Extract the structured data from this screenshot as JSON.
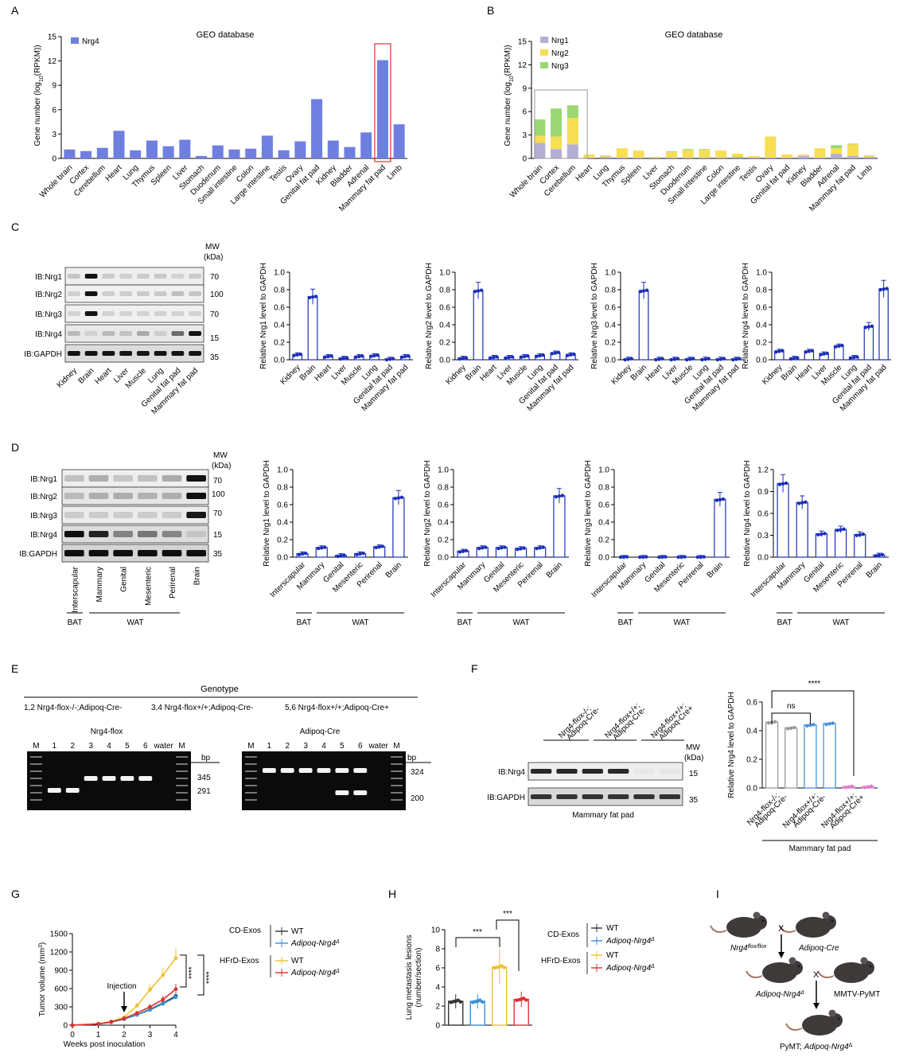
{
  "panel_labels": [
    "A",
    "B",
    "C",
    "D",
    "E",
    "F",
    "G",
    "H",
    "I"
  ],
  "tissues": [
    "Whole brain",
    "Cortex",
    "Cerebellum",
    "Heart",
    "Lung",
    "Thymus",
    "Spleen",
    "Liver",
    "Stomach",
    "Duodenum",
    "Small intestine",
    "Colon",
    "Large intestine",
    "Testis",
    "Ovary",
    "Genital fat pad",
    "Kidney",
    "Bladder",
    "Adrenal",
    "Mammary fat pad",
    "Limb"
  ],
  "chart_data": [
    {
      "id": "A",
      "type": "bar",
      "title": "GEO database",
      "ylabel": "Gene number (log10(RPKM))",
      "ylim": [
        0,
        15
      ],
      "yticks": [
        0,
        3,
        6,
        9,
        12,
        15
      ],
      "series": [
        {
          "name": "Nrg4",
          "color": "#6f7fe0",
          "values": [
            1.1,
            0.9,
            1.3,
            3.4,
            1.0,
            2.2,
            1.5,
            2.3,
            0.3,
            1.6,
            1.1,
            1.2,
            2.8,
            1.0,
            2.1,
            7.3,
            2.2,
            1.4,
            3.2,
            12.1,
            4.2
          ]
        }
      ],
      "highlight": "Mammary fat pad"
    },
    {
      "id": "B",
      "type": "bar",
      "stacked": true,
      "title": "GEO database",
      "ylabel": "Gene number (log10(RPKM))",
      "ylim": [
        0,
        15
      ],
      "yticks": [
        0,
        3,
        6,
        9,
        12,
        15
      ],
      "series": [
        {
          "name": "Nrg1",
          "color": "#b3aed4",
          "values": [
            2.0,
            1.2,
            1.8,
            0.1,
            0.2,
            0.1,
            0.1,
            0.1,
            0.1,
            0.1,
            0.1,
            0.1,
            0.2,
            0.1,
            0.1,
            0.1,
            0.3,
            0.1,
            0.6,
            0.3,
            0.2
          ]
        },
        {
          "name": "Nrg2",
          "color": "#f7de52",
          "values": [
            0.9,
            1.6,
            3.4,
            0.4,
            0.2,
            1.2,
            0.9,
            0.1,
            0.7,
            1.0,
            1.0,
            0.9,
            0.4,
            0.2,
            2.7,
            0.4,
            0.2,
            1.2,
            0.7,
            1.5,
            0.2
          ]
        },
        {
          "name": "Nrg3",
          "color": "#9bd773",
          "values": [
            2.1,
            3.6,
            1.6,
            0,
            0,
            0,
            0,
            0,
            0.1,
            0.1,
            0.1,
            0,
            0,
            0,
            0,
            0,
            0,
            0,
            0.4,
            0.1,
            0
          ]
        }
      ]
    },
    {
      "id": "C1",
      "type": "bar",
      "ylabel": "Relative Nrg1 level to GAPDH",
      "ylim": [
        0,
        1.0
      ],
      "categories": [
        "Kidney",
        "Brain",
        "Heart",
        "Liver",
        "Muscle",
        "Lung",
        "Genital fat pad",
        "Mammary fat pad"
      ],
      "values": [
        0.06,
        0.72,
        0.04,
        0.02,
        0.04,
        0.05,
        0.01,
        0.04
      ]
    },
    {
      "id": "C2",
      "type": "bar",
      "ylabel": "Relative Nrg2 level to GAPDH",
      "ylim": [
        0,
        1.0
      ],
      "categories": [
        "Kidney",
        "Brain",
        "Heart",
        "Liver",
        "Muscle",
        "Lung",
        "Genital fat pad",
        "Mammary fat pad"
      ],
      "values": [
        0.02,
        0.79,
        0.03,
        0.03,
        0.04,
        0.05,
        0.08,
        0.06
      ]
    },
    {
      "id": "C3",
      "type": "bar",
      "ylabel": "Relative Nrg3 level to GAPDH",
      "ylim": [
        0,
        1.0
      ],
      "categories": [
        "Kidney",
        "Brain",
        "Heart",
        "Liver",
        "Muscle",
        "Lung",
        "Genital fat pad",
        "Mammary fat pad"
      ],
      "values": [
        0.01,
        0.79,
        0.01,
        0.01,
        0.01,
        0.01,
        0.01,
        0.01
      ]
    },
    {
      "id": "C4",
      "type": "bar",
      "ylabel": "Relative Nrg4 level to GAPDH",
      "ylim": [
        0,
        1.0
      ],
      "categories": [
        "Kidney",
        "Brain",
        "Heart",
        "Liver",
        "Muscle",
        "Lung",
        "Genital fat pad",
        "Mammary fat pad"
      ],
      "values": [
        0.1,
        0.02,
        0.1,
        0.07,
        0.16,
        0.03,
        0.38,
        0.81
      ]
    },
    {
      "id": "D1",
      "type": "bar",
      "ylabel": "Relative Nrg1 level to GAPDH",
      "ylim": [
        0,
        1.0
      ],
      "categories": [
        "Interscapular",
        "Mammary",
        "Genital",
        "Mesenteric",
        "Perirenal",
        "Brain"
      ],
      "values": [
        0.04,
        0.11,
        0.02,
        0.04,
        0.12,
        0.68
      ]
    },
    {
      "id": "D2",
      "type": "bar",
      "ylabel": "Relative Nrg2 level to GAPDH",
      "ylim": [
        0,
        1.0
      ],
      "categories": [
        "Interscapular",
        "Mammary",
        "Genital",
        "Mesenteric",
        "Perirenal",
        "Brain"
      ],
      "values": [
        0.07,
        0.11,
        0.11,
        0.1,
        0.11,
        0.7
      ]
    },
    {
      "id": "D3",
      "type": "bar",
      "ylabel": "Relative Nrg3 level to GAPDH",
      "ylim": [
        0,
        1.0
      ],
      "categories": [
        "Interscapular",
        "Mammary",
        "Genital",
        "Mesenteric",
        "Perirenal",
        "Brain"
      ],
      "values": [
        0.0,
        0.0,
        0.0,
        0.0,
        0.0,
        0.66
      ]
    },
    {
      "id": "D4",
      "type": "bar",
      "ylabel": "Relative Nrg4 level to GAPDH",
      "ylim": [
        0,
        1.2
      ],
      "categories": [
        "Interscapular",
        "Mammary",
        "Genital",
        "Mesenteric",
        "Perirenal",
        "Brain"
      ],
      "values": [
        1.01,
        0.75,
        0.32,
        0.38,
        0.31,
        0.03
      ]
    },
    {
      "id": "F",
      "type": "bar",
      "ylabel": "Relative Nrg4 level to GAPDH",
      "ylim": [
        0,
        0.6
      ],
      "values": [
        0.46,
        0.42,
        0.44,
        0.45,
        0.01,
        0.01
      ],
      "colors": [
        "#9a9a9a",
        "#9a9a9a",
        "#4a90d9",
        "#4a90d9",
        "#e07ac8",
        "#e07ac8"
      ]
    },
    {
      "id": "G",
      "type": "line",
      "xlabel": "Weeks post inoculation",
      "ylabel": "Tumor volume (mm3)",
      "ylim": [
        0,
        1500
      ],
      "x": [
        0,
        1,
        1.5,
        2,
        2.5,
        3,
        3.5,
        4
      ],
      "series": [
        {
          "name": "CD-Exos WT",
          "color": "#333333",
          "values": [
            0,
            20,
            50,
            100,
            170,
            260,
            360,
            480
          ]
        },
        {
          "name": "CD-Exos Adipoq-Nrg4Δ",
          "color": "#3b8fd6",
          "values": [
            0,
            20,
            50,
            100,
            170,
            250,
            350,
            460
          ]
        },
        {
          "name": "HFrD-Exos WT",
          "color": "#f0c030",
          "values": [
            0,
            25,
            60,
            130,
            320,
            580,
            820,
            1100
          ]
        },
        {
          "name": "HFrD-Exos Adipoq-Nrg4Δ",
          "color": "#e03030",
          "values": [
            0,
            20,
            55,
            110,
            200,
            300,
            420,
            590
          ]
        }
      ]
    },
    {
      "id": "H",
      "type": "bar",
      "ylabel": "Lung metastasis lesions (number/section)",
      "ylim": [
        0,
        10
      ],
      "values": [
        2.5,
        2.5,
        6.1,
        2.7
      ],
      "colors": [
        "#333333",
        "#3b8fd6",
        "#f0c030",
        "#e03030"
      ]
    }
  ],
  "A": {
    "title": "GEO database",
    "legend": "Nrg4",
    "ylabel": "Gene number (log",
    "ylabel_sub": "10",
    "ylabel_end": "(RPKM))"
  },
  "B": {
    "title": "GEO database",
    "legend": [
      "Nrg1",
      "Nrg2",
      "Nrg3"
    ],
    "ylabel": "Gene number (log",
    "ylabel_sub": "10",
    "ylabel_end": "(RPKM))"
  },
  "C": {
    "ib": [
      "IB:Nrg1",
      "IB:Nrg2",
      "IB:Nrg3",
      "IB:Nrg4",
      "IB:GAPDH"
    ],
    "mw_title": "MW",
    "mw_unit": "(kDa)",
    "mw": [
      "70",
      "100",
      "70",
      "15",
      "35"
    ],
    "lanes": [
      "Kidney",
      "Brain",
      "Heart",
      "Liver",
      "Muscle",
      "Lung",
      "Genital fat pad",
      "Mammary fat pad"
    ],
    "yticks": [
      "0.0",
      "0.2",
      "0.4",
      "0.6",
      "0.8",
      "1.0"
    ]
  },
  "D": {
    "ib": [
      "IB:Nrg1",
      "IB:Nrg2",
      "IB:Nrg3",
      "IB:Nrg4",
      "IB:GAPDH"
    ],
    "mw_title": "MW",
    "mw_unit": "(kDa)",
    "mw": [
      "70",
      "100",
      "70",
      "15",
      "35"
    ],
    "lanes": [
      "Interscapular",
      "Mammary",
      "Genital",
      "Mesenteric",
      "Perirenal",
      "Brain"
    ],
    "bat": "BAT",
    "wat": "WAT",
    "yticks": [
      "0.0",
      "0.2",
      "0.4",
      "0.6",
      "0.8",
      "1.0"
    ],
    "yticks4": [
      "0.0",
      "0.3",
      "0.6",
      "0.9",
      "1.2"
    ]
  },
  "E": {
    "genotype": "Genotype",
    "g1": "1,2  Nrg4-flox-/-;Adipoq-Cre-",
    "g2": "3,4  Nrg4-flox+/+;Adipoq-Cre-",
    "g3": "5,6  Nrg4-flox+/+;Adipoq-Cre+",
    "gel1_title": "Nrg4-flox",
    "gel2_title": "Adipoq-Cre",
    "lanes": [
      "M",
      "1",
      "2",
      "3",
      "4",
      "5",
      "6",
      "water",
      "M"
    ],
    "bp": "bp",
    "gel1_bp": [
      "345",
      "291"
    ],
    "gel2_bp": [
      "324",
      "200"
    ]
  },
  "F": {
    "groups": [
      "Nrg4-flox-/-; Adipoq-Cre-",
      "Nrg4-flox+/+; Adipoq-Cre-",
      "Nrg4-flox+/+; Adipoq-Cre+"
    ],
    "g_line1": [
      "Nrg4-flox-/-;",
      "Nrg4-flox+/+;",
      "Nrg4-flox+/+;"
    ],
    "g_line2": [
      "Adipoq-Cre-",
      "Adipoq-Cre-",
      "Adipoq-Cre+"
    ],
    "ib": [
      "IB:Nrg4",
      "IB:GAPDH"
    ],
    "mw_title": "MW",
    "mw_unit": "(kDa)",
    "mw": [
      "15",
      "35"
    ],
    "tissue": "Mammary fat pad",
    "ns": "ns",
    "sig": "****",
    "ylabel": "Relative Nrg4 level to GAPDH",
    "yticks": [
      "0.0",
      "0.2",
      "0.4",
      "0.6"
    ]
  },
  "G": {
    "ylabel": "Tumor volume (mm",
    "ylabel_sup": "3",
    "ylabel_end": ")",
    "xlabel": "Weeks post inoculation",
    "injection": "Injection",
    "yticks": [
      "0",
      "300",
      "600",
      "900",
      "1200",
      "1500"
    ],
    "xticks": [
      "0",
      "1",
      "2",
      "3",
      "4"
    ],
    "cd": "CD-Exos",
    "hfrd": "HFrD-Exos",
    "wt": "WT",
    "ko": "Adipoq-Nrg4",
    "delta": "Δ",
    "sig": "****"
  },
  "H": {
    "ylabel1": "Lung metastasis lesions",
    "ylabel2": "(number/section)",
    "yticks": [
      "0",
      "2",
      "4",
      "6",
      "8",
      "10"
    ],
    "sig": "***",
    "cd": "CD-Exos",
    "hfrd": "HFrD-Exos",
    "wt": "WT",
    "ko": "Adipoq-Nrg4",
    "delta": "Δ"
  },
  "I": {
    "m1": "Nrg4",
    "m1_sup": "flox/flox",
    "m2": "Adipoq-Cre",
    "m3": "Adipoq-Nrg4",
    "m3_sup": "Δ",
    "m4": "MMTV-PyMT",
    "m5": "PyMT; ",
    "m5b": "Adipoq-Nrg4",
    "m5_sup": "Δ",
    "cross": "X"
  }
}
